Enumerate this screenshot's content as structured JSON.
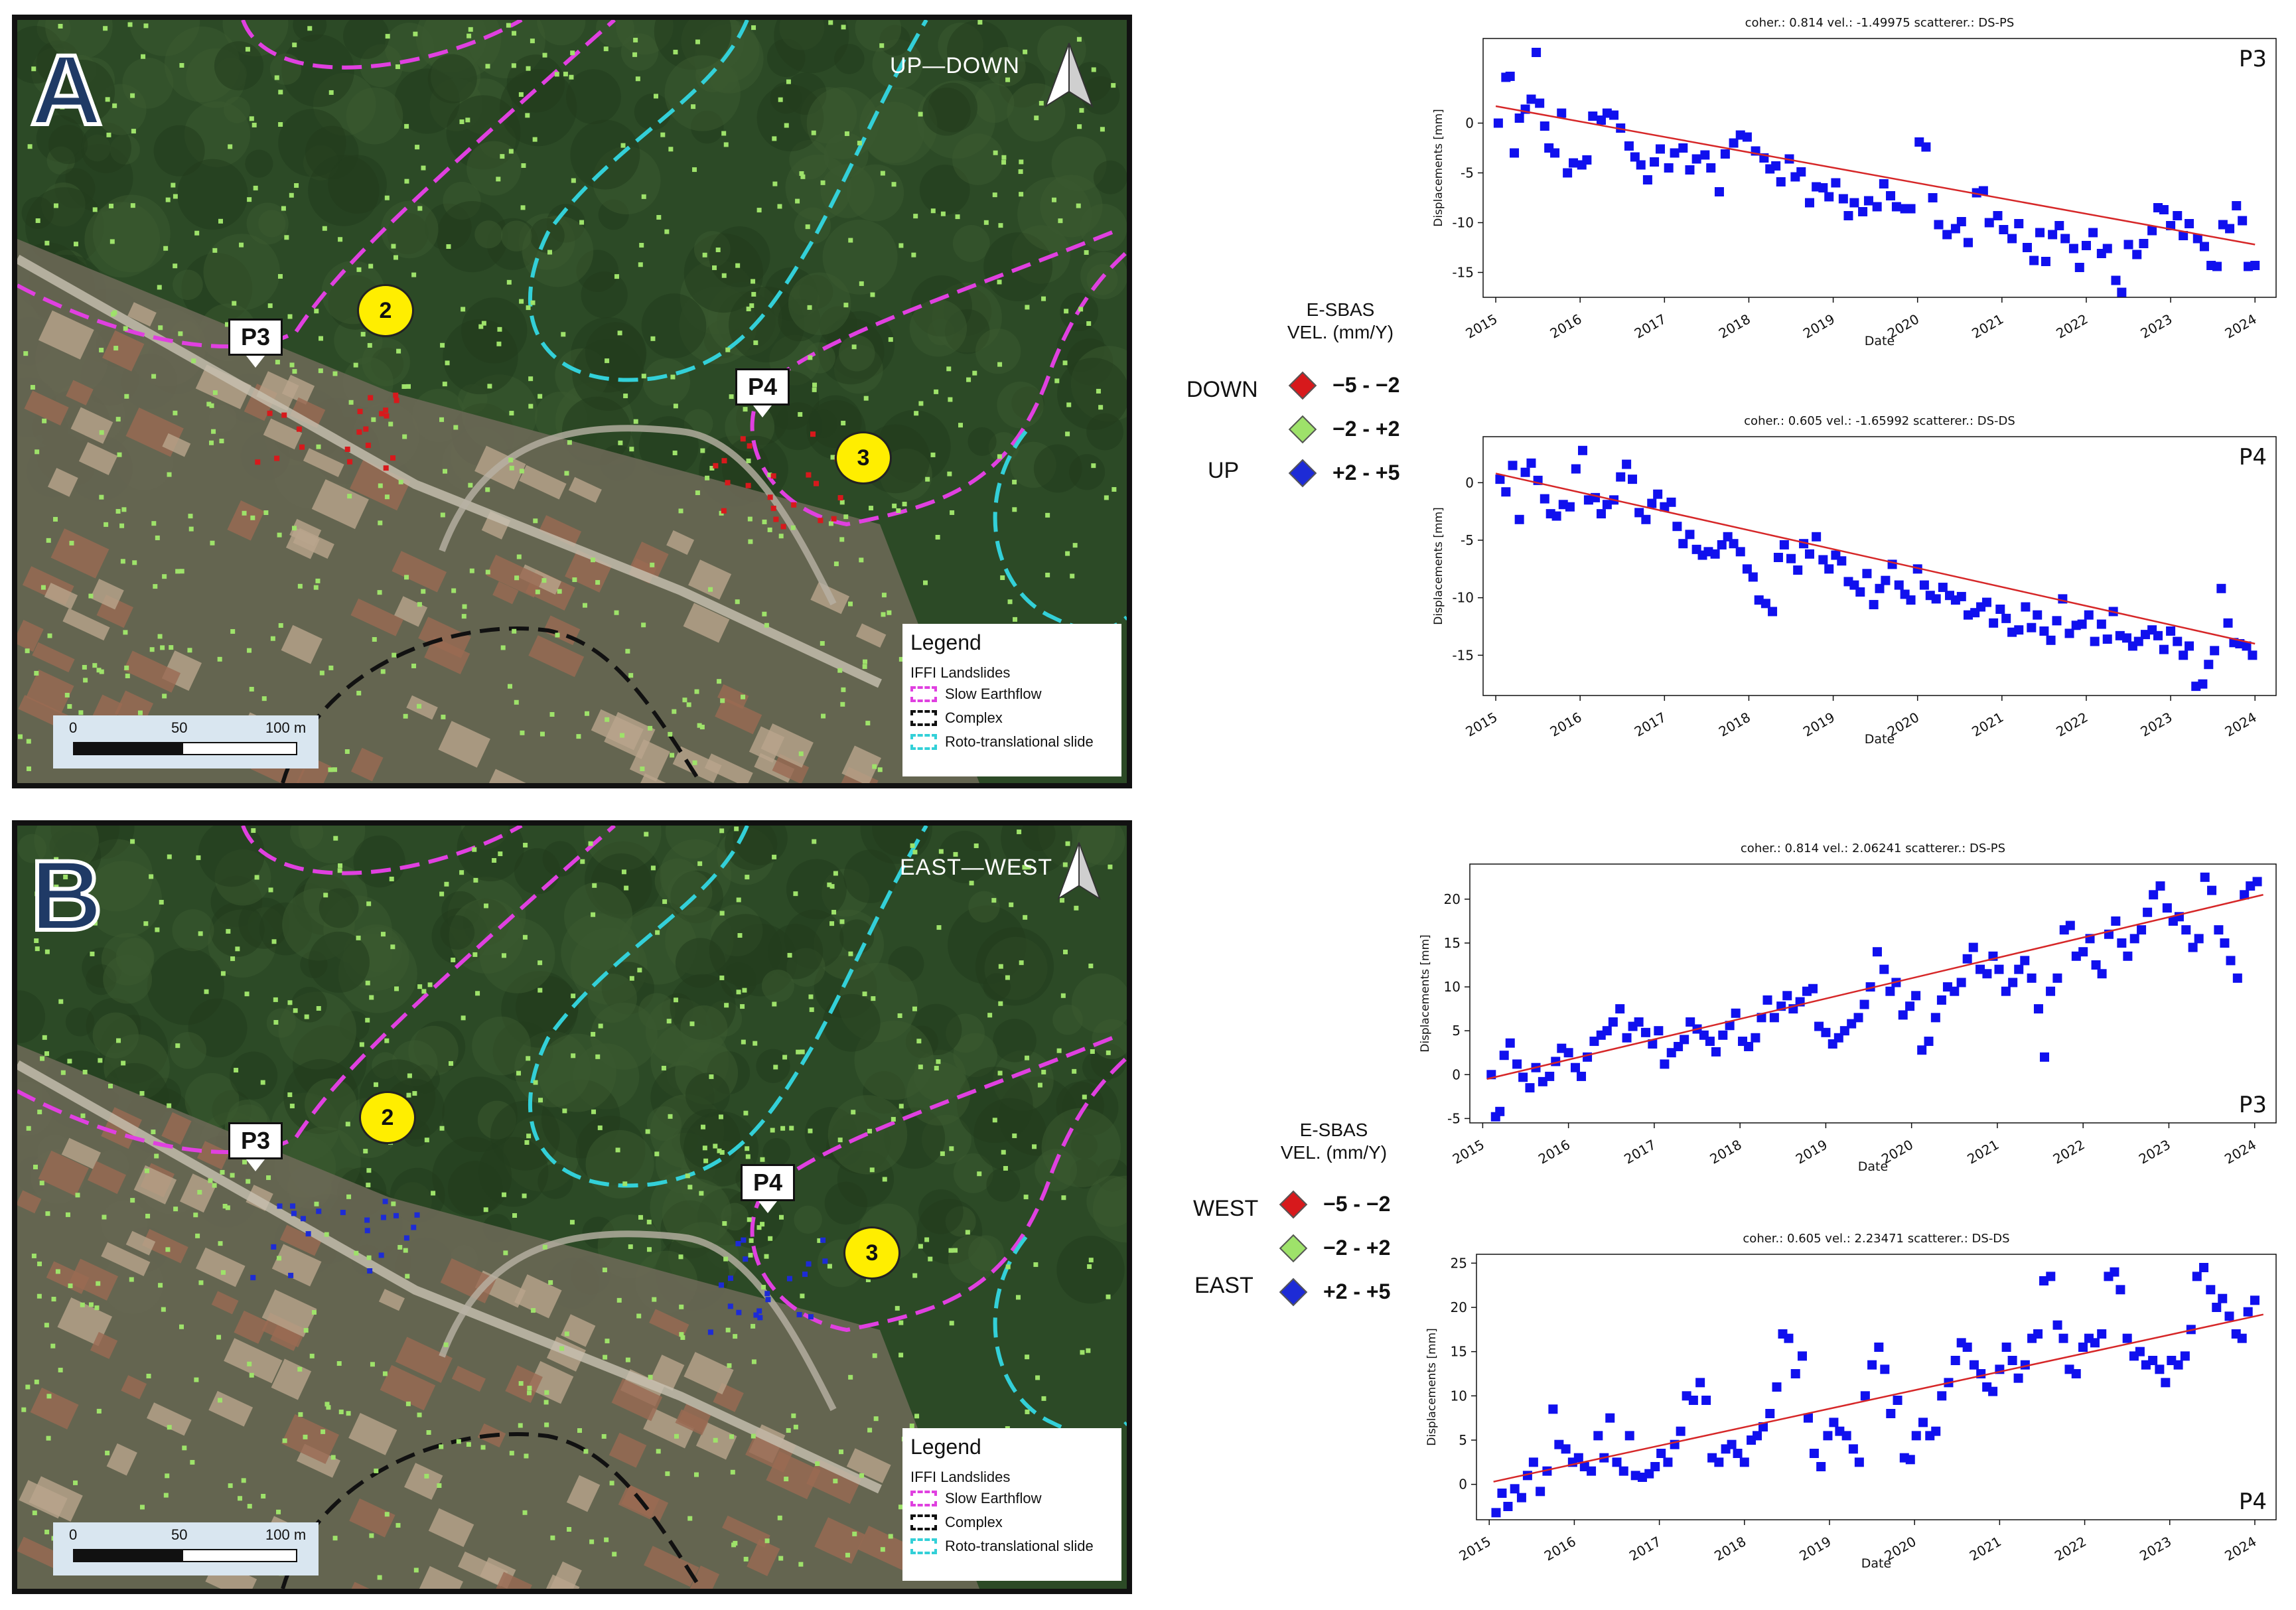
{
  "colors": {
    "red": "#d7191c",
    "green": "#9ee26a",
    "blue": "#1d2bd6",
    "magenta": "#e040e0",
    "cyan": "#33d0d8",
    "black": "#111111",
    "trend": "#d62728",
    "point": "#1010ee"
  },
  "panels": [
    {
      "letter": "A",
      "direction": "UP—DOWN",
      "landslide_labels": [
        "2",
        "3"
      ],
      "pins": [
        "P3",
        "P4"
      ],
      "legend": {
        "title": "Legend",
        "subtitle": "IFFI Landslides",
        "items": [
          "Slow Earthflow",
          "Complex",
          "Roto-translational slide"
        ]
      },
      "scale": {
        "labels": [
          "0",
          "50",
          "100 m"
        ]
      },
      "point_color": "red"
    },
    {
      "letter": "B",
      "direction": "EAST—WEST",
      "landslide_labels": [
        "2",
        "3"
      ],
      "pins": [
        "P3",
        "P4"
      ],
      "legend": {
        "title": "Legend",
        "subtitle": "IFFI Landslides",
        "items": [
          "Slow Earthflow",
          "Complex",
          "Roto-translational slide"
        ]
      },
      "scale": {
        "labels": [
          "0",
          "50",
          "100 m"
        ]
      },
      "point_color": "blue"
    }
  ],
  "velocity_legends": [
    {
      "title_line1": "E-SBAS",
      "title_line2": "VEL. (mm/Y)",
      "neg_label": "DOWN",
      "pos_label": "UP",
      "classes": [
        "−5 - −2",
        "−2 - +2",
        "+2 - +5"
      ]
    },
    {
      "title_line1": "E-SBAS",
      "title_line2": "VEL. (mm/Y)",
      "neg_label": "WEST",
      "pos_label": "EAST",
      "classes": [
        "−5 - −2",
        "−2 - +2",
        "+2 - +5"
      ]
    }
  ],
  "chart_data": [
    {
      "type": "scatter",
      "label": "P3",
      "title": "coher.: 0.814 vel.: -1.49975 scatterer.: DS-PS",
      "xlabel": "Date",
      "ylabel": "Displacements [mm]",
      "x_ticks": [
        "2015",
        "2016",
        "2017",
        "2018",
        "2019",
        "2020",
        "2021",
        "2022",
        "2023",
        "2024"
      ],
      "y_ticks": [
        0,
        -5,
        -10,
        -15
      ],
      "ylim": [
        -17.5,
        8.5
      ],
      "xlim": [
        2014.85,
        2024.25
      ],
      "trend": {
        "x": [
          2015.0,
          2024.0
        ],
        "y": [
          1.7,
          -12.2
        ]
      },
      "x": [
        2015.03,
        2015.12,
        2015.17,
        2015.22,
        2015.28,
        2015.35,
        2015.42,
        2015.48,
        2015.52,
        2015.58,
        2015.63,
        2015.7,
        2015.78,
        2015.85,
        2015.92,
        2016.02,
        2016.08,
        2016.15,
        2016.25,
        2016.32,
        2016.4,
        2016.48,
        2016.58,
        2016.65,
        2016.72,
        2016.8,
        2016.88,
        2016.95,
        2017.05,
        2017.12,
        2017.22,
        2017.3,
        2017.38,
        2017.48,
        2017.55,
        2017.65,
        2017.72,
        2017.82,
        2017.9,
        2017.98,
        2018.08,
        2018.18,
        2018.25,
        2018.32,
        2018.38,
        2018.48,
        2018.55,
        2018.62,
        2018.72,
        2018.8,
        2018.88,
        2018.95,
        2019.03,
        2019.12,
        2019.18,
        2019.25,
        2019.35,
        2019.42,
        2019.52,
        2019.6,
        2019.68,
        2019.75,
        2019.85,
        2019.92,
        2020.02,
        2020.1,
        2020.18,
        2020.25,
        2020.35,
        2020.45,
        2020.52,
        2020.6,
        2020.7,
        2020.78,
        2020.85,
        2020.95,
        2021.02,
        2021.12,
        2021.2,
        2021.3,
        2021.38,
        2021.45,
        2021.52,
        2021.6,
        2021.68,
        2021.75,
        2021.85,
        2021.92,
        2022.0,
        2022.08,
        2022.18,
        2022.25,
        2022.35,
        2022.42,
        2022.5,
        2022.6,
        2022.68,
        2022.78,
        2022.85,
        2022.92,
        2023.0,
        2023.08,
        2023.15,
        2023.22,
        2023.32,
        2023.4,
        2023.48,
        2023.55,
        2023.62,
        2023.7,
        2023.78,
        2023.85,
        2023.92,
        2024.0
      ],
      "y": [
        0.0,
        4.6,
        4.7,
        -3.0,
        0.5,
        1.4,
        2.4,
        7.1,
        2.0,
        -0.3,
        -2.5,
        -3.0,
        1.0,
        -5.0,
        -4.0,
        -4.2,
        -3.7,
        0.7,
        0.3,
        1.0,
        0.8,
        -0.5,
        -2.3,
        -3.4,
        -4.2,
        -5.7,
        -3.9,
        -2.6,
        -4.5,
        -3.0,
        -2.5,
        -4.7,
        -3.6,
        -3.2,
        -4.5,
        -6.9,
        -3.1,
        -2.0,
        -1.2,
        -1.4,
        -2.8,
        -3.5,
        -4.6,
        -4.3,
        -5.9,
        -3.6,
        -5.4,
        -4.9,
        -8.0,
        -6.4,
        -6.5,
        -7.4,
        -6.0,
        -7.6,
        -9.3,
        -8.0,
        -8.9,
        -7.8,
        -8.4,
        -6.1,
        -7.3,
        -8.4,
        -8.6,
        -8.6,
        -1.9,
        -2.4,
        -7.5,
        -10.2,
        -11.2,
        -10.6,
        -9.9,
        -12.0,
        -7.0,
        -6.8,
        -10.0,
        -9.3,
        -10.7,
        -11.6,
        -10.1,
        -12.5,
        -13.8,
        -11.0,
        -13.9,
        -11.2,
        -10.3,
        -11.6,
        -12.6,
        -14.5,
        -12.3,
        -11.0,
        -13.1,
        -12.6,
        -15.8,
        -17.0,
        -12.2,
        -13.2,
        -12.1,
        -10.8,
        -8.5,
        -8.7,
        -10.3,
        -9.3,
        -11.3,
        -10.1,
        -11.6,
        -12.4,
        -14.3,
        -14.4,
        -10.2,
        -10.6,
        -8.3,
        -9.8,
        -14.4,
        -14.3
      ]
    },
    {
      "type": "scatter",
      "label": "P4",
      "title": "coher.: 0.605 vel.: -1.65992 scatterer.: DS-DS",
      "xlabel": "Date",
      "ylabel": "Displacements [mm]",
      "x_ticks": [
        "2015",
        "2016",
        "2017",
        "2018",
        "2019",
        "2020",
        "2021",
        "2022",
        "2023",
        "2024"
      ],
      "y_ticks": [
        0,
        -5,
        -10,
        -15
      ],
      "ylim": [
        -18.5,
        4.0
      ],
      "xlim": [
        2014.85,
        2024.25
      ],
      "trend": {
        "x": [
          2015.0,
          2024.0
        ],
        "y": [
          0.8,
          -14.0
        ]
      },
      "x": [
        2015.05,
        2015.12,
        2015.2,
        2015.28,
        2015.35,
        2015.42,
        2015.5,
        2015.58,
        2015.65,
        2015.72,
        2015.8,
        2015.88,
        2015.95,
        2016.03,
        2016.1,
        2016.18,
        2016.25,
        2016.32,
        2016.4,
        2016.48,
        2016.55,
        2016.62,
        2016.7,
        2016.78,
        2016.85,
        2016.92,
        2017.0,
        2017.08,
        2017.15,
        2017.22,
        2017.3,
        2017.38,
        2017.45,
        2017.52,
        2017.6,
        2017.68,
        2017.75,
        2017.82,
        2017.9,
        2017.98,
        2018.05,
        2018.12,
        2018.2,
        2018.28,
        2018.35,
        2018.42,
        2018.5,
        2018.58,
        2018.65,
        2018.72,
        2018.8,
        2018.88,
        2018.95,
        2019.03,
        2019.1,
        2019.18,
        2019.25,
        2019.32,
        2019.4,
        2019.48,
        2019.55,
        2019.62,
        2019.7,
        2019.78,
        2019.85,
        2019.92,
        2020.0,
        2020.08,
        2020.15,
        2020.22,
        2020.3,
        2020.38,
        2020.45,
        2020.52,
        2020.6,
        2020.68,
        2020.75,
        2020.82,
        2020.9,
        2020.98,
        2021.05,
        2021.12,
        2021.2,
        2021.28,
        2021.35,
        2021.42,
        2021.5,
        2021.58,
        2021.65,
        2021.72,
        2021.8,
        2021.88,
        2021.95,
        2022.03,
        2022.1,
        2022.18,
        2022.25,
        2022.32,
        2022.4,
        2022.48,
        2022.55,
        2022.62,
        2022.7,
        2022.78,
        2022.85,
        2022.92,
        2023.0,
        2023.08,
        2023.15,
        2023.22,
        2023.3,
        2023.38,
        2023.45,
        2023.52,
        2023.6,
        2023.68,
        2023.75,
        2023.82,
        2023.9,
        2023.97
      ],
      "y": [
        0.3,
        -0.8,
        1.5,
        -3.2,
        0.9,
        1.7,
        0.2,
        -1.4,
        -2.7,
        -2.9,
        -1.9,
        -2.1,
        1.2,
        2.8,
        -1.5,
        -1.3,
        -2.7,
        -1.9,
        -1.5,
        0.5,
        1.6,
        0.3,
        -2.6,
        -3.2,
        -1.8,
        -1.0,
        -2.1,
        -1.7,
        -3.8,
        -5.3,
        -4.5,
        -5.8,
        -6.3,
        -6.0,
        -6.2,
        -5.4,
        -4.7,
        -5.3,
        -6.0,
        -7.5,
        -8.2,
        -10.2,
        -10.5,
        -11.2,
        -6.5,
        -5.4,
        -6.6,
        -7.6,
        -5.3,
        -6.2,
        -4.7,
        -6.7,
        -7.5,
        -6.3,
        -6.8,
        -8.6,
        -8.9,
        -9.5,
        -7.9,
        -10.6,
        -9.2,
        -8.5,
        -7.1,
        -8.9,
        -9.7,
        -10.2,
        -7.5,
        -8.9,
        -9.8,
        -10.1,
        -9.1,
        -9.8,
        -10.2,
        -9.9,
        -11.5,
        -11.3,
        -10.8,
        -10.4,
        -12.2,
        -11.0,
        -11.8,
        -13.0,
        -12.8,
        -10.8,
        -12.6,
        -11.5,
        -12.9,
        -13.7,
        -12.0,
        -10.1,
        -13.1,
        -12.4,
        -12.3,
        -11.5,
        -13.8,
        -12.3,
        -13.6,
        -11.2,
        -13.3,
        -13.5,
        -14.2,
        -13.8,
        -13.2,
        -12.8,
        -13.3,
        -14.5,
        -12.9,
        -13.8,
        -15.0,
        -14.2,
        -17.7,
        -17.5,
        -15.8,
        -14.6,
        -9.2,
        -12.2,
        -13.9,
        -14.0,
        -14.2,
        -15.0
      ]
    },
    {
      "type": "scatter",
      "label": "P3",
      "title": "coher.: 0.814 vel.: 2.06241 scatterer.: DS-PS",
      "xlabel": "Date",
      "ylabel": "Displacements [mm]",
      "x_ticks": [
        "2015",
        "2016",
        "2017",
        "2018",
        "2019",
        "2020",
        "2021",
        "2022",
        "2023",
        "2024"
      ],
      "y_ticks": [
        -5,
        0,
        5,
        10,
        15,
        20
      ],
      "ylim": [
        -5.5,
        24.0
      ],
      "xlim": [
        2014.85,
        2024.25
      ],
      "trend": {
        "x": [
          2015.05,
          2024.1
        ],
        "y": [
          -0.5,
          20.5
        ]
      },
      "x": [
        2015.1,
        2015.15,
        2015.2,
        2015.25,
        2015.32,
        2015.4,
        2015.47,
        2015.55,
        2015.62,
        2015.7,
        2015.78,
        2015.85,
        2015.92,
        2016.0,
        2016.08,
        2016.15,
        2016.22,
        2016.3,
        2016.38,
        2016.45,
        2016.52,
        2016.6,
        2016.68,
        2016.75,
        2016.82,
        2016.9,
        2016.98,
        2017.05,
        2017.12,
        2017.2,
        2017.28,
        2017.35,
        2017.42,
        2017.5,
        2017.58,
        2017.65,
        2017.72,
        2017.8,
        2017.88,
        2017.95,
        2018.03,
        2018.1,
        2018.18,
        2018.25,
        2018.32,
        2018.4,
        2018.48,
        2018.55,
        2018.62,
        2018.7,
        2018.78,
        2018.85,
        2018.92,
        2019.0,
        2019.08,
        2019.15,
        2019.22,
        2019.3,
        2019.38,
        2019.45,
        2019.52,
        2019.6,
        2019.68,
        2019.75,
        2019.82,
        2019.9,
        2019.98,
        2020.05,
        2020.12,
        2020.2,
        2020.28,
        2020.35,
        2020.42,
        2020.5,
        2020.58,
        2020.65,
        2020.72,
        2020.8,
        2020.88,
        2020.95,
        2021.02,
        2021.1,
        2021.18,
        2021.25,
        2021.32,
        2021.4,
        2021.48,
        2021.55,
        2021.62,
        2021.7,
        2021.78,
        2021.85,
        2021.92,
        2022.0,
        2022.08,
        2022.15,
        2022.22,
        2022.3,
        2022.38,
        2022.45,
        2022.52,
        2022.6,
        2022.68,
        2022.75,
        2022.82,
        2022.9,
        2022.98,
        2023.05,
        2023.12,
        2023.2,
        2023.28,
        2023.35,
        2023.42,
        2023.5,
        2023.58,
        2023.65,
        2023.72,
        2023.8,
        2023.88,
        2023.95,
        2024.03
      ],
      "y": [
        0.0,
        -4.8,
        -4.2,
        2.2,
        3.6,
        1.2,
        -0.3,
        -1.5,
        0.8,
        -0.8,
        -0.2,
        1.5,
        3.0,
        2.5,
        0.8,
        -0.2,
        2.0,
        3.8,
        4.5,
        5.0,
        6.0,
        7.5,
        4.2,
        5.5,
        6.0,
        4.8,
        3.5,
        5.0,
        1.2,
        2.5,
        3.2,
        4.0,
        6.0,
        5.2,
        4.5,
        3.8,
        2.6,
        4.5,
        5.6,
        7.0,
        3.8,
        3.2,
        4.2,
        6.5,
        8.5,
        6.5,
        7.8,
        9.0,
        7.5,
        8.3,
        9.5,
        9.8,
        5.5,
        4.8,
        3.5,
        4.2,
        5.0,
        5.8,
        6.5,
        8.0,
        10.0,
        14.0,
        12.0,
        9.5,
        10.5,
        6.8,
        7.8,
        9.0,
        2.8,
        3.8,
        6.5,
        8.5,
        10.0,
        9.5,
        10.5,
        13.2,
        14.5,
        12.0,
        11.5,
        13.5,
        12.0,
        9.5,
        10.5,
        12.0,
        13.0,
        11.0,
        7.5,
        2.0,
        9.5,
        11.0,
        16.5,
        17.0,
        13.5,
        14.0,
        15.5,
        12.5,
        11.5,
        16.0,
        17.5,
        15.0,
        13.5,
        15.5,
        16.5,
        18.5,
        20.5,
        21.5,
        19.0,
        17.5,
        18.0,
        16.5,
        14.5,
        15.5,
        22.5,
        21.0,
        16.5,
        15.0,
        13.0,
        11.0,
        20.5,
        21.5,
        22.0
      ]
    },
    {
      "type": "scatter",
      "label": "P4",
      "title": "coher.: 0.605 vel.: 2.23471 scatterer.: DS-DS",
      "xlabel": "Date",
      "ylabel": "Displacements [mm]",
      "x_ticks": [
        "2015",
        "2016",
        "2017",
        "2018",
        "2019",
        "2020",
        "2021",
        "2022",
        "2023",
        "2024"
      ],
      "y_ticks": [
        0,
        5,
        10,
        15,
        20,
        25
      ],
      "ylim": [
        -4.0,
        26.0
      ],
      "xlim": [
        2014.85,
        2024.25
      ],
      "trend": {
        "x": [
          2015.05,
          2024.1
        ],
        "y": [
          0.3,
          19.2
        ]
      },
      "x": [
        2015.08,
        2015.15,
        2015.22,
        2015.3,
        2015.38,
        2015.45,
        2015.52,
        2015.6,
        2015.68,
        2015.75,
        2015.82,
        2015.9,
        2015.98,
        2016.05,
        2016.12,
        2016.2,
        2016.28,
        2016.35,
        2016.42,
        2016.5,
        2016.58,
        2016.65,
        2016.72,
        2016.8,
        2016.88,
        2016.95,
        2017.02,
        2017.1,
        2017.18,
        2017.25,
        2017.32,
        2017.4,
        2017.48,
        2017.55,
        2017.62,
        2017.7,
        2017.78,
        2017.85,
        2017.92,
        2018.0,
        2018.08,
        2018.15,
        2018.22,
        2018.3,
        2018.38,
        2018.45,
        2018.52,
        2018.6,
        2018.68,
        2018.75,
        2018.82,
        2018.9,
        2018.98,
        2019.05,
        2019.12,
        2019.2,
        2019.28,
        2019.35,
        2019.42,
        2019.5,
        2019.58,
        2019.65,
        2019.72,
        2019.8,
        2019.88,
        2019.95,
        2020.02,
        2020.1,
        2020.18,
        2020.25,
        2020.32,
        2020.4,
        2020.48,
        2020.55,
        2020.62,
        2020.7,
        2020.78,
        2020.85,
        2020.92,
        2021.0,
        2021.08,
        2021.15,
        2021.22,
        2021.3,
        2021.38,
        2021.45,
        2021.52,
        2021.6,
        2021.68,
        2021.75,
        2021.82,
        2021.9,
        2021.98,
        2022.05,
        2022.12,
        2022.2,
        2022.28,
        2022.35,
        2022.42,
        2022.5,
        2022.58,
        2022.65,
        2022.72,
        2022.8,
        2022.88,
        2022.95,
        2023.02,
        2023.1,
        2023.18,
        2023.25,
        2023.32,
        2023.4,
        2023.48,
        2023.55,
        2023.62,
        2023.7,
        2023.78,
        2023.85,
        2023.92,
        2024.0
      ],
      "y": [
        -3.2,
        -1.0,
        -2.5,
        -0.5,
        -1.5,
        1.0,
        2.5,
        -0.8,
        1.5,
        8.5,
        4.5,
        4.0,
        2.5,
        3.0,
        2.0,
        1.5,
        5.5,
        3.0,
        7.5,
        2.5,
        1.5,
        5.5,
        1.0,
        0.8,
        1.2,
        2.0,
        3.5,
        2.5,
        4.5,
        6.0,
        10.0,
        9.5,
        11.5,
        9.5,
        3.0,
        2.5,
        4.0,
        4.5,
        3.5,
        2.5,
        5.0,
        5.5,
        6.5,
        8.0,
        11.0,
        17.0,
        16.5,
        12.5,
        14.5,
        7.5,
        3.5,
        2.0,
        5.5,
        7.0,
        6.0,
        5.5,
        4.0,
        2.5,
        10.0,
        13.5,
        15.5,
        13.0,
        8.0,
        9.5,
        3.0,
        2.8,
        5.5,
        7.0,
        5.5,
        6.0,
        10.0,
        11.5,
        14.0,
        16.0,
        15.5,
        13.5,
        12.5,
        11.0,
        10.5,
        13.0,
        15.5,
        14.0,
        12.0,
        13.5,
        16.5,
        17.0,
        23.0,
        23.5,
        18.0,
        16.5,
        13.0,
        12.5,
        15.5,
        16.5,
        16.0,
        17.0,
        23.5,
        24.0,
        22.0,
        16.5,
        14.5,
        15.0,
        13.5,
        14.0,
        13.0,
        11.5,
        14.0,
        13.5,
        14.5,
        17.5,
        23.5,
        24.5,
        22.0,
        20.0,
        21.0,
        19.0,
        17.0,
        16.5,
        19.5,
        20.8
      ]
    }
  ]
}
